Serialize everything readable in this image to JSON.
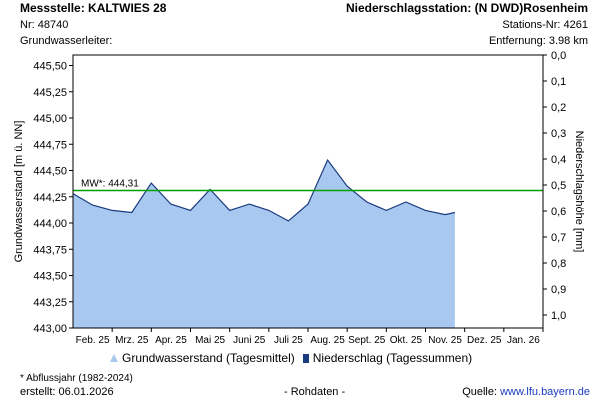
{
  "header": {
    "station_label": "Messstelle: KALTWIES 28",
    "station_nr": "Nr: 48740",
    "aquifer_label": "Grundwasserleiter:",
    "precip_station": "Niederschlagsstation: (N DWD)Rosenheim",
    "precip_station_nr": "Stations-Nr: 4261",
    "distance": "Entfernung: 3.98 km"
  },
  "footer": {
    "note": "* Abflussjahr (1982-2024)",
    "created": "erstellt:  06.01.2026",
    "raw": "- Rohdaten -",
    "source_prefix": "Quelle: ",
    "source_link": "www.lfu.bayern.de"
  },
  "legend": {
    "groundwater": "Grundwasserstand (Tagesmittel)",
    "precip": "Niederschlag (Tagessummen)"
  },
  "chart_data": {
    "type": "area",
    "ylabel": "Grundwasserstand [m ü. NN]",
    "y2label": "Niederschlagshöhe [mm]",
    "ylim": [
      443.0,
      445.6
    ],
    "yticks": [
      "443,00",
      "443,25",
      "443,50",
      "443,75",
      "444,00",
      "444,25",
      "444,50",
      "444,75",
      "445,00",
      "445,25",
      "445,50"
    ],
    "y2lim": [
      0.0,
      1.05
    ],
    "y2ticks": [
      "0,0",
      "0,1",
      "0,2",
      "0,3",
      "0,4",
      "0,5",
      "0,6",
      "0,7",
      "0,8",
      "0,9",
      "1,0"
    ],
    "xlabels": [
      "Feb. 25",
      "Mrz. 25",
      "Apr. 25",
      "Mai 25",
      "Juni 25",
      "Juli 25",
      "Aug. 25",
      "Sept. 25",
      "Okt. 25",
      "Nov. 25",
      "Dez. 25",
      "Jan. 26"
    ],
    "mean_label": "MW*: 444,31",
    "mean_value": 444.31,
    "colors": {
      "area": "#a8c8f0",
      "line": "#1a3a80",
      "mean": "#00a000"
    },
    "x": [
      0,
      0.5,
      1,
      1.5,
      2,
      2.5,
      3,
      3.5,
      4,
      4.5,
      5,
      5.5,
      6,
      6.5,
      7,
      7.5,
      8,
      8.5,
      9,
      9.5,
      9.75
    ],
    "values": [
      444.28,
      444.17,
      444.12,
      444.1,
      444.38,
      444.18,
      444.12,
      444.32,
      444.12,
      444.18,
      444.12,
      444.02,
      444.18,
      444.6,
      444.35,
      444.2,
      444.12,
      444.2,
      444.12,
      444.08,
      444.1
    ]
  }
}
